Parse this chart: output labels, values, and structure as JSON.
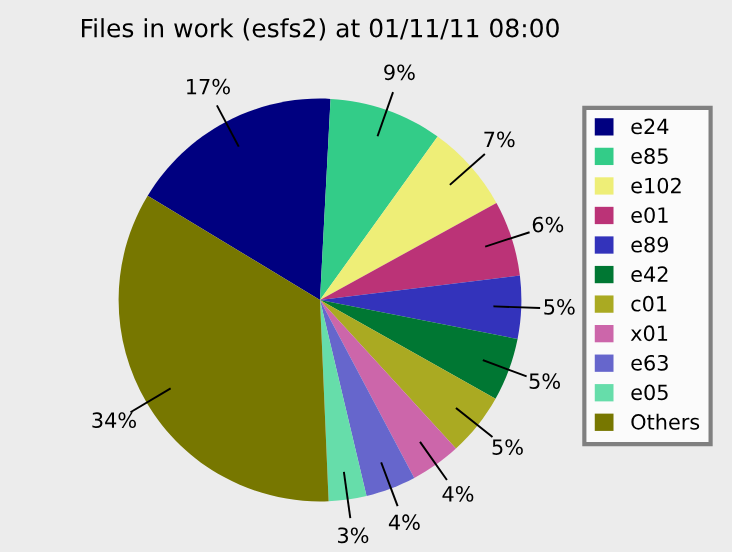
{
  "chart_data": {
    "type": "pie",
    "title": "Files in work (esfs2) at 01/11/11 08:00",
    "categories": [
      "e24",
      "e85",
      "e102",
      "e01",
      "e89",
      "e42",
      "c01",
      "x01",
      "e63",
      "e05",
      "Others"
    ],
    "values": [
      17,
      9,
      7,
      6,
      5,
      5,
      5,
      4,
      4,
      3,
      34
    ],
    "value_labels": [
      "17%",
      "9%",
      "7%",
      "6%",
      "5%",
      "5%",
      "5%",
      "4%",
      "4%",
      "3%",
      "34%"
    ],
    "colors": [
      "#000080",
      "#33cc88",
      "#eeee77",
      "#bb3377",
      "#3333bb",
      "#007733",
      "#aaaa22",
      "#cc66aa",
      "#6666cc",
      "#66ddaa",
      "#777700"
    ],
    "legend": "right"
  }
}
